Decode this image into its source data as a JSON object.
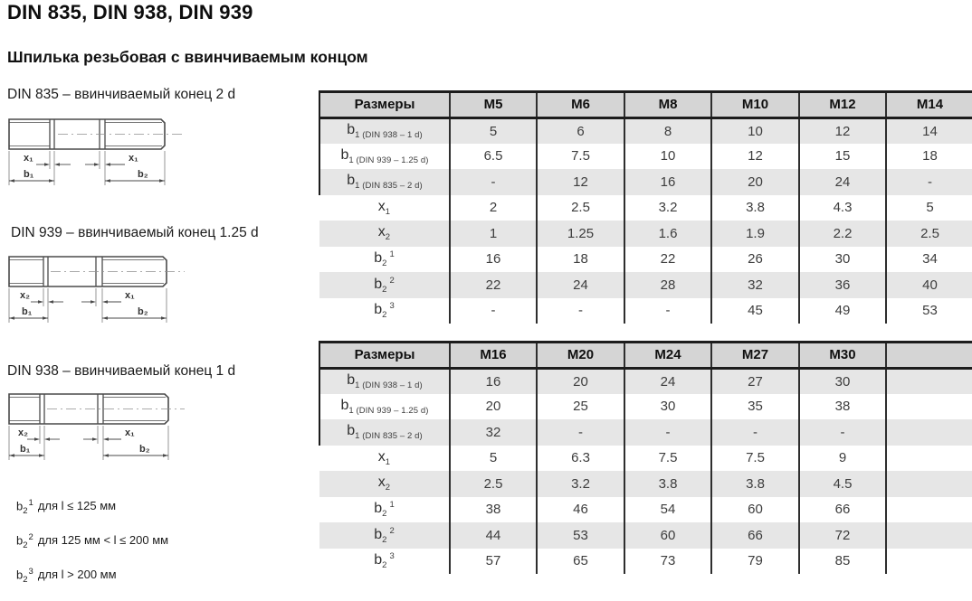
{
  "page": {
    "title": "DIN 835, DIN 938, DIN 939",
    "subtitle": "Шпилька резьбовая с ввинчиваемым концом"
  },
  "diagrams": [
    {
      "id": "din835",
      "caption": "DIN 835 – ввинчиваемый конец 2 d",
      "x_left": "x₁",
      "x_right": "x₁",
      "b_left": "b₁",
      "b_right": "b₂"
    },
    {
      "id": "din939",
      "caption": "DIN 939 – ввинчиваемый конец 1.25 d",
      "x_left": "x₂",
      "x_right": "x₁",
      "b_left": "b₁",
      "b_right": "b₂"
    },
    {
      "id": "din938",
      "caption": "DIN 938 – ввинчиваемый конец 1 d",
      "x_left": "x₂",
      "x_right": "x₁",
      "b_left": "b₁",
      "b_right": "b₂"
    }
  ],
  "tables": [
    {
      "name": "sizes-m5-m14",
      "header": [
        "Размеры",
        "M5",
        "M6",
        "M8",
        "M10",
        "M12",
        "M14"
      ],
      "rows": [
        {
          "label": {
            "base": "b",
            "sub": "1 (DIN 938 – 1 d)"
          },
          "values": [
            "5",
            "6",
            "8",
            "10",
            "12",
            "14"
          ]
        },
        {
          "label": {
            "base": "b",
            "sub": "1 (DIN 939 – 1.25 d)"
          },
          "values": [
            "6.5",
            "7.5",
            "10",
            "12",
            "15",
            "18"
          ]
        },
        {
          "label": {
            "base": "b",
            "sub": "1 (DIN 835 – 2 d)"
          },
          "values": [
            "-",
            "12",
            "16",
            "20",
            "24",
            "-"
          ]
        },
        {
          "label": {
            "base": "x",
            "sub": "1"
          },
          "values": [
            "2",
            "2.5",
            "3.2",
            "3.8",
            "4.3",
            "5"
          ]
        },
        {
          "label": {
            "base": "x",
            "sub": "2"
          },
          "values": [
            "1",
            "1.25",
            "1.6",
            "1.9",
            "2.2",
            "2.5"
          ]
        },
        {
          "label": {
            "base": "b",
            "sub": "2",
            "sup": "1"
          },
          "values": [
            "16",
            "18",
            "22",
            "26",
            "30",
            "34"
          ]
        },
        {
          "label": {
            "base": "b",
            "sub": "2",
            "sup": "2"
          },
          "values": [
            "22",
            "24",
            "28",
            "32",
            "36",
            "40"
          ]
        },
        {
          "label": {
            "base": "b",
            "sub": "2",
            "sup": "3"
          },
          "values": [
            "-",
            "-",
            "-",
            "45",
            "49",
            "53"
          ]
        }
      ]
    },
    {
      "name": "sizes-m16-m30",
      "header": [
        "Размеры",
        "M16",
        "M20",
        "M24",
        "M27",
        "M30",
        ""
      ],
      "rows": [
        {
          "label": {
            "base": "b",
            "sub": "1 (DIN 938 – 1 d)"
          },
          "values": [
            "16",
            "20",
            "24",
            "27",
            "30",
            ""
          ]
        },
        {
          "label": {
            "base": "b",
            "sub": "1 (DIN 939 – 1.25 d)"
          },
          "values": [
            "20",
            "25",
            "30",
            "35",
            "38",
            ""
          ]
        },
        {
          "label": {
            "base": "b",
            "sub": "1 (DIN 835 – 2 d)"
          },
          "values": [
            "32",
            "-",
            "-",
            "-",
            "-",
            ""
          ]
        },
        {
          "label": {
            "base": "x",
            "sub": "1"
          },
          "values": [
            "5",
            "6.3",
            "7.5",
            "7.5",
            "9",
            ""
          ]
        },
        {
          "label": {
            "base": "x",
            "sub": "2"
          },
          "values": [
            "2.5",
            "3.2",
            "3.8",
            "3.8",
            "4.5",
            ""
          ]
        },
        {
          "label": {
            "base": "b",
            "sub": "2",
            "sup": "1"
          },
          "values": [
            "38",
            "46",
            "54",
            "60",
            "66",
            ""
          ]
        },
        {
          "label": {
            "base": "b",
            "sub": "2",
            "sup": "2"
          },
          "values": [
            "44",
            "53",
            "60",
            "66",
            "72",
            ""
          ]
        },
        {
          "label": {
            "base": "b",
            "sub": "2",
            "sup": "3"
          },
          "values": [
            "57",
            "65",
            "73",
            "79",
            "85",
            ""
          ]
        }
      ]
    }
  ],
  "footnotes": [
    {
      "base": "b",
      "sub": "2",
      "sup": "1",
      "text": "для l ≤ 125 мм"
    },
    {
      "base": "b",
      "sub": "2",
      "sup": "2",
      "text": "для 125 мм < l ≤ 200 мм"
    },
    {
      "base": "b",
      "sub": "2",
      "sup": "3",
      "text": "для l > 200 мм"
    }
  ],
  "colors": {
    "table_header_bg": "#d5d5d5",
    "row_stripe_bg": "#e6e6e6",
    "table_border": "#1c1c1c",
    "value_text": "#3d3d3d"
  }
}
